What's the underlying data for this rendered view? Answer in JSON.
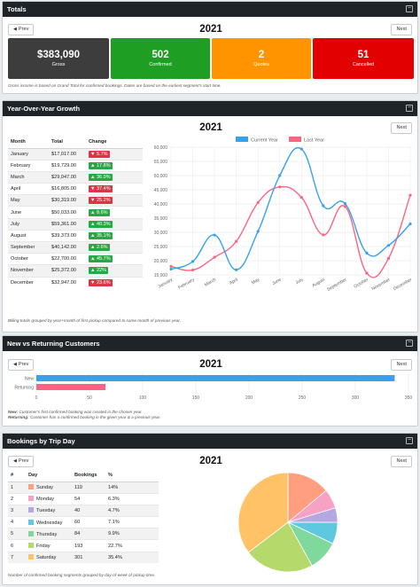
{
  "totals": {
    "title": "Totals",
    "prev": "Prev",
    "next": "Next",
    "year": "2021",
    "cards": [
      {
        "value": "$383,090",
        "label": "Gross",
        "color": "#3d3d3d"
      },
      {
        "value": "502",
        "label": "Confirmed",
        "color": "#1e9e23"
      },
      {
        "value": "2",
        "label": "Quotes",
        "color": "#ff9400"
      },
      {
        "value": "51",
        "label": "Cancelled",
        "color": "#e30000"
      }
    ],
    "note": "Gross income is based on Grand Total for confirmed bookings. Dates are based on the earliest segment's start time."
  },
  "yoy": {
    "title": "Year-Over-Year Growth",
    "next": "Next",
    "year": "2021",
    "columns": [
      "Month",
      "Total",
      "Change"
    ],
    "rows": [
      {
        "month": "January",
        "total": "$17,017.00",
        "change": "5.7%",
        "dir": "down"
      },
      {
        "month": "February",
        "total": "$19,729.00",
        "change": "17.8%",
        "dir": "up"
      },
      {
        "month": "March",
        "total": "$29,047.00",
        "change": "36.9%",
        "dir": "up"
      },
      {
        "month": "April",
        "total": "$16,805.00",
        "change": "37.4%",
        "dir": "down"
      },
      {
        "month": "May",
        "total": "$30,319.00",
        "change": "25.2%",
        "dir": "down"
      },
      {
        "month": "June",
        "total": "$50,033.00",
        "change": "8.6%",
        "dir": "up"
      },
      {
        "month": "July",
        "total": "$59,361.00",
        "change": "40.3%",
        "dir": "up"
      },
      {
        "month": "August",
        "total": "$39,373.00",
        "change": "35.1%",
        "dir": "up"
      },
      {
        "month": "September",
        "total": "$40,142.00",
        "change": "2.6%",
        "dir": "up"
      },
      {
        "month": "October",
        "total": "$22,700.00",
        "change": "45.7%",
        "dir": "up"
      },
      {
        "month": "November",
        "total": "$25,372.00",
        "change": "22%",
        "dir": "up"
      },
      {
        "month": "December",
        "total": "$32,947.00",
        "change": "23.6%",
        "dir": "down"
      }
    ],
    "note": "Billing totals grouped by year+month of first pickup compared to same month of previous year."
  },
  "newret": {
    "title": "New vs Returning Customers",
    "prev": "Prev",
    "next": "Next",
    "year": "2021",
    "note_new_label": "New:",
    "note_new": "Customer's first confirmed booking was created in the chosen year.",
    "note_ret_label": "Returning:",
    "note_ret": "Customer has a confirmed booking in the given year & a previous year."
  },
  "trip": {
    "title": "Bookings by Trip Day",
    "prev": "Prev",
    "next": "Next",
    "year": "2021",
    "columns": [
      "#",
      "Day",
      "Bookings",
      "%"
    ],
    "rows": [
      {
        "n": "1",
        "day": "Sunday",
        "bookings": "119",
        "pct": "14%",
        "color": "#ff9f80"
      },
      {
        "n": "2",
        "day": "Monday",
        "bookings": "54",
        "pct": "6.3%",
        "color": "#f7a1c4"
      },
      {
        "n": "3",
        "day": "Tuesday",
        "bookings": "40",
        "pct": "4.7%",
        "color": "#b5a7e0"
      },
      {
        "n": "4",
        "day": "Wednesday",
        "bookings": "60",
        "pct": "7.1%",
        "color": "#5ec8e0"
      },
      {
        "n": "5",
        "day": "Thursday",
        "bookings": "84",
        "pct": "9.9%",
        "color": "#7fd89c"
      },
      {
        "n": "6",
        "day": "Friday",
        "bookings": "193",
        "pct": "22.7%",
        "color": "#b5d96a"
      },
      {
        "n": "7",
        "day": "Saturday",
        "bookings": "301",
        "pct": "35.4%",
        "color": "#ffc266"
      }
    ],
    "note": "Number of confirmed booking segments grouped by day-of-week of pickup time."
  },
  "chart_data": [
    {
      "type": "line",
      "categories": [
        "January",
        "February",
        "March",
        "April",
        "May",
        "June",
        "July",
        "August",
        "September",
        "October",
        "November",
        "December"
      ],
      "series": [
        {
          "name": "Current Year",
          "color": "#36a2eb",
          "values": [
            17017,
            19729,
            29047,
            16805,
            30319,
            50033,
            59361,
            39373,
            40142,
            22700,
            25372,
            32947
          ]
        },
        {
          "name": "Last Year",
          "color": "#ff6384",
          "values": [
            18000,
            16700,
            21200,
            26800,
            40500,
            46000,
            42300,
            29100,
            39100,
            15600,
            20800,
            43100
          ]
        }
      ],
      "ylim": [
        15000,
        60000
      ],
      "yticks": [
        "15,000",
        "20,000",
        "25,000",
        "30,000",
        "35,000",
        "40,000",
        "45,000",
        "50,000",
        "55,000",
        "60,000"
      ],
      "legend": "top"
    },
    {
      "type": "bar",
      "orientation": "horizontal",
      "categories": [
        "New",
        "Returning"
      ],
      "values": [
        337,
        65
      ],
      "colors": [
        "#36a2eb",
        "#ff6384"
      ],
      "xlim": [
        0,
        350
      ],
      "xticks": [
        "0",
        "50",
        "100",
        "150",
        "200",
        "250",
        "300",
        "350"
      ]
    },
    {
      "type": "pie",
      "categories": [
        "Sunday",
        "Monday",
        "Tuesday",
        "Wednesday",
        "Thursday",
        "Friday",
        "Saturday"
      ],
      "values": [
        119,
        54,
        40,
        60,
        84,
        193,
        301
      ],
      "colors": [
        "#ff9f80",
        "#f7a1c4",
        "#b5a7e0",
        "#5ec8e0",
        "#7fd89c",
        "#b5d96a",
        "#ffc266"
      ]
    }
  ]
}
